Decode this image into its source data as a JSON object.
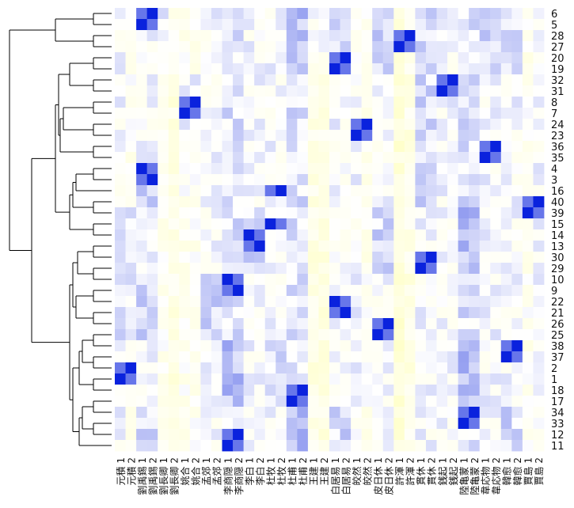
{
  "chart_data": {
    "type": "heatmap",
    "title": "",
    "xlabel": "",
    "ylabel": "",
    "color_scale": {
      "low": "#ffff99",
      "mid": "#ffffff",
      "high": "#0a22dd",
      "range": [
        -1,
        1
      ]
    },
    "column_labels": [
      "元積_1",
      "元積_2",
      "劉禹錫_1",
      "劉禹錫_2",
      "劉長卿_1",
      "劉長卿_2",
      "姚合_1",
      "姚合_2",
      "孟郊_1",
      "孟郊_2",
      "李商隠_1",
      "李商隠_2",
      "李白_1",
      "李白_2",
      "杜牧_1",
      "杜牧_2",
      "杜甫_1",
      "杜甫_2",
      "王建_1",
      "王建_2",
      "白居易_1",
      "白居易_2",
      "皎然_1",
      "皎然_2",
      "皮日休_1",
      "皮日休_2",
      "許渾_1",
      "許渾_2",
      "貫休_1",
      "貫休_2",
      "銭起_1",
      "銭起_2",
      "陸亀蒙_1",
      "陸亀蒙_2",
      "韋応物_1",
      "韋応物_2",
      "韓愈_1",
      "韓愈_2",
      "賈島_1",
      "賈島_2"
    ],
    "row_labels": [
      "6",
      "5",
      "28",
      "27",
      "20",
      "19",
      "32",
      "31",
      "8",
      "7",
      "24",
      "23",
      "36",
      "35",
      "4",
      "3",
      "16",
      "40",
      "39",
      "15",
      "14",
      "13",
      "30",
      "29",
      "10",
      "9",
      "22",
      "21",
      "26",
      "25",
      "38",
      "37",
      "2",
      "1",
      "18",
      "17",
      "34",
      "33",
      "12",
      "11"
    ],
    "column_tints": [
      "0",
      "1",
      "0",
      "0",
      "1",
      "2",
      "1",
      "1",
      "0",
      "0",
      "-1",
      "-1",
      "0",
      "0",
      "0",
      "0",
      "-1",
      "-1",
      "2",
      "2",
      "0",
      "0",
      "0",
      "1",
      "0",
      "0",
      "3",
      "2",
      "0",
      "0",
      "0",
      "0",
      "-1",
      "-1",
      "0",
      "0",
      "0",
      "0",
      "1",
      "0"
    ],
    "strong_pairs": [
      [
        "6",
        "劉禹錫_2"
      ],
      [
        "5",
        "劉禹錫_1"
      ],
      [
        "28",
        "許渾_2"
      ],
      [
        "27",
        "許渾_1"
      ],
      [
        "20",
        "白居易_2"
      ],
      [
        "19",
        "白居易_1"
      ],
      [
        "32",
        "銭起_2"
      ],
      [
        "31",
        "銭起_1"
      ],
      [
        "8",
        "姚合_2"
      ],
      [
        "7",
        "姚合_1"
      ],
      [
        "24",
        "皎然_2"
      ],
      [
        "23",
        "皎然_1"
      ],
      [
        "36",
        "韋応物_2"
      ],
      [
        "35",
        "韋応物_1"
      ],
      [
        "4",
        "劉禹錫_1"
      ],
      [
        "3",
        "劉禹錫_2"
      ],
      [
        "16",
        "杜牧_2"
      ],
      [
        "15",
        "杜牧_1"
      ],
      [
        "40",
        "賈島_2"
      ],
      [
        "39",
        "賈島_1"
      ],
      [
        "14",
        "李白_1"
      ],
      [
        "13",
        "李白_2"
      ],
      [
        "30",
        "貫休_2"
      ],
      [
        "29",
        "貫休_1"
      ],
      [
        "10",
        "李商隠_1"
      ],
      [
        "9",
        "李商隠_2"
      ],
      [
        "22",
        "白居易_1"
      ],
      [
        "21",
        "白居易_2"
      ],
      [
        "26",
        "皮日休_2"
      ],
      [
        "25",
        "皮日休_1"
      ],
      [
        "38",
        "韓愈_2"
      ],
      [
        "37",
        "韓愈_1"
      ],
      [
        "2",
        "元積_2"
      ],
      [
        "1",
        "元積_1"
      ],
      [
        "18",
        "杜甫_2"
      ],
      [
        "17",
        "杜甫_1"
      ],
      [
        "34",
        "陸亀蒙_2"
      ],
      [
        "33",
        "陸亀蒙_1"
      ],
      [
        "12",
        "李商隠_2"
      ],
      [
        "11",
        "李商隠_1"
      ]
    ],
    "dendrogram": "row clustering tree (rows 6/5/28/27/20/19 … 34/33/12/11)",
    "legend": "none"
  }
}
